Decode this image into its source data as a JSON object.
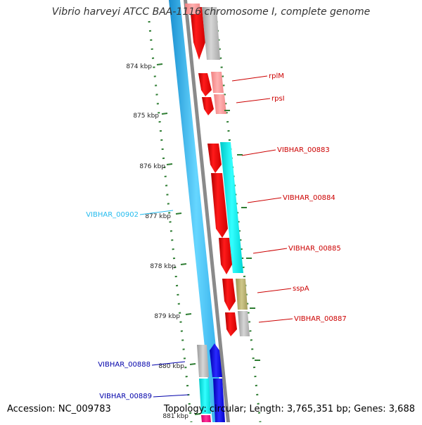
{
  "header": {
    "title": "Vibrio harveyi ATCC BAA-1116 chromosome I, complete genome"
  },
  "footer": {
    "accession": "Accession: NC_009783",
    "summary": "Topology: circular; Length: 3,765,351 bp; Genes: 3,688"
  },
  "colors": {
    "backbone_blue": "#33bbee",
    "backbone_gray": "#8a8a8a",
    "tick_green": "#2e7d32",
    "gene_red": "#e00000",
    "gene_cyan": "#00e5e5",
    "gene_gray": "#b5b5b5",
    "gene_khaki": "#b5ad70",
    "gene_blue": "#0000dd",
    "label_red": "#cc0000",
    "label_cyan": "#22bbee",
    "label_blue": "#0000aa"
  },
  "map": {
    "ticks": [
      {
        "kbp": 874,
        "label": "874 kbp"
      },
      {
        "kbp": 875,
        "label": "875 kbp"
      },
      {
        "kbp": 876,
        "label": "876 kbp"
      },
      {
        "kbp": 877,
        "label": "877 kbp"
      },
      {
        "kbp": 878,
        "label": "878 kbp"
      },
      {
        "kbp": 879,
        "label": "879 kbp"
      },
      {
        "kbp": 880,
        "label": "880 kbp"
      },
      {
        "kbp": 881,
        "label": "881 kbp"
      }
    ],
    "gene_labels": [
      {
        "id": "rplM",
        "text": "rplM"
      },
      {
        "id": "rpsI",
        "text": "rpsI"
      },
      {
        "id": "g883",
        "text": "VIBHAR_00883"
      },
      {
        "id": "g884",
        "text": "VIBHAR_00884"
      },
      {
        "id": "g885",
        "text": "VIBHAR_00885"
      },
      {
        "id": "sspA",
        "text": "sspA"
      },
      {
        "id": "g887",
        "text": "VIBHAR_00887"
      },
      {
        "id": "g902",
        "text": "VIBHAR_00902"
      },
      {
        "id": "g888",
        "text": "VIBHAR_00888"
      },
      {
        "id": "g889",
        "text": "VIBHAR_00889"
      }
    ]
  }
}
